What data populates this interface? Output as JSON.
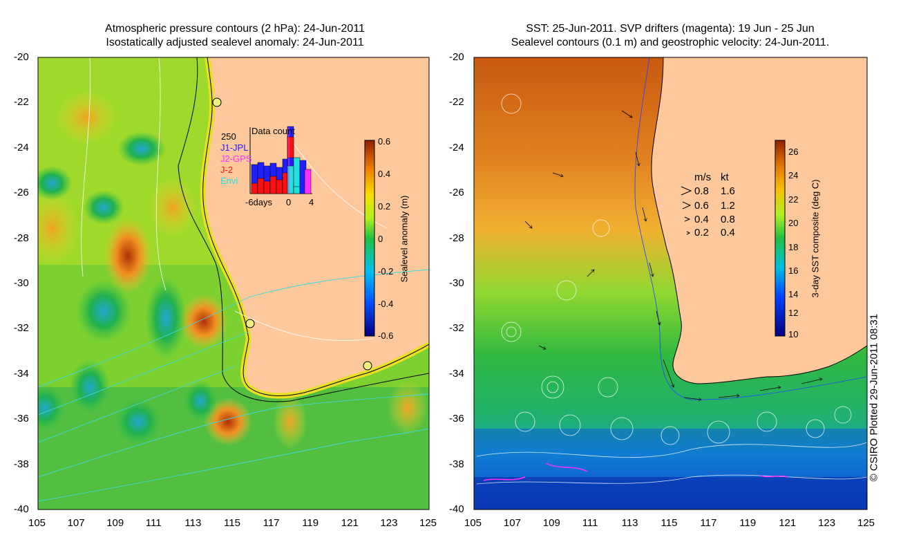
{
  "left_panel": {
    "title_line1": "Atmospheric pressure contours (2 hPa): 24-Jun-2011",
    "title_line2": "Isostatically adjusted sealevel anomaly: 24-Jun-2011",
    "colorbar": {
      "label": "Sealevel anomaly (m)",
      "ticks": [
        "0.6",
        "0.4",
        "0.2",
        "0",
        "-0.2",
        "-0.4",
        "-0.6"
      ]
    },
    "inset": {
      "title": "Data count",
      "ymax": "250",
      "legend": [
        {
          "label": "J1-JPL",
          "color": "#2020ff"
        },
        {
          "label": "J2-GPS",
          "color": "#ff30ff"
        },
        {
          "label": "J-2",
          "color": "#ff1010"
        },
        {
          "label": "Envi",
          "color": "#20e0e0"
        }
      ],
      "xlabels": [
        "-6days",
        "0",
        "4"
      ]
    }
  },
  "right_panel": {
    "title_line1": "SST: 25-Jun-2011. SVP drifters (magenta): 19 Jun - 25 Jun",
    "title_line2": "Sealevel contours (0.1 m) and geostrophic velocity: 24-Jun-2011.",
    "colorbar": {
      "label": "3-day SST composite (deg C)",
      "ticks": [
        "26",
        "24",
        "22",
        "20",
        "18",
        "16",
        "14",
        "12",
        "10"
      ]
    },
    "velocity_legend": {
      "header_ms": "m/s",
      "header_kt": "kt",
      "rows": [
        {
          "ms": "0.8",
          "kt": "1.6"
        },
        {
          "ms": "0.6",
          "kt": "1.2"
        },
        {
          "ms": "0.4",
          "kt": "0.8"
        },
        {
          "ms": "0.2",
          "kt": "0.4"
        }
      ]
    }
  },
  "axes": {
    "lat_ticks": [
      "-20",
      "-22",
      "-24",
      "-26",
      "-28",
      "-30",
      "-32",
      "-34",
      "-36",
      "-38",
      "-40"
    ],
    "lon_ticks": [
      "105",
      "107",
      "109",
      "111",
      "113",
      "115",
      "117",
      "119",
      "121",
      "123",
      "125"
    ]
  },
  "credit": "© CSIRO Plotted 29-Jun-2011 08:31",
  "colors": {
    "land": "#fcc89c",
    "contour_white": "#ffffff",
    "contour_cyan": "#40d8e0",
    "drifter_magenta": "#ff30ff"
  }
}
